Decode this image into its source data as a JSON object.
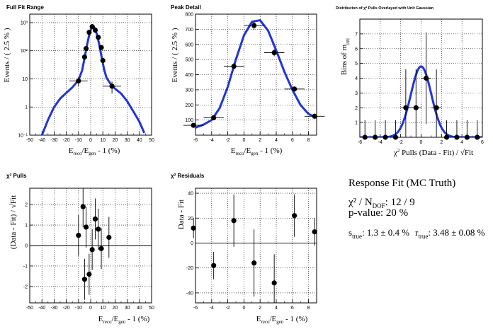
{
  "chart_data": [
    {
      "id": "full-fit-range",
      "type": "scatter",
      "title": "Full Fit Range",
      "xlabel": "E_reco/E_gen - 1 (%)",
      "ylabel": "Events / ( 2.5 % )",
      "xlim": [
        -50,
        50
      ],
      "ylim": [
        0.1,
        2000
      ],
      "yscale": "log",
      "grid": true,
      "xticks": [
        "-50",
        "-40",
        "-30",
        "-20",
        "-10",
        "0",
        "10",
        "20",
        "30",
        "40",
        "50"
      ],
      "yticks": [
        "10⁻¹",
        "1",
        "10",
        "10²",
        "10³"
      ],
      "points": [
        {
          "x": -10.0,
          "y": 8.5,
          "xerr": 7.5,
          "yerr": 3
        },
        {
          "x": -5.0,
          "y": 60,
          "xerr": 1.25,
          "yerr": 10
        },
        {
          "x": -3.75,
          "y": 120,
          "xerr": 1.25,
          "yerr": 12
        },
        {
          "x": -1.25,
          "y": 450,
          "xerr": 1.25,
          "yerr": 25
        },
        {
          "x": 1.25,
          "y": 720,
          "xerr": 1.25,
          "yerr": 30
        },
        {
          "x": 3.75,
          "y": 540,
          "xerr": 1.25,
          "yerr": 25
        },
        {
          "x": 6.25,
          "y": 300,
          "xerr": 1.25,
          "yerr": 20
        },
        {
          "x": 8.75,
          "y": 130,
          "xerr": 1.25,
          "yerr": 12
        },
        {
          "x": 10.0,
          "y": 45,
          "xerr": 1.25,
          "yerr": 8
        },
        {
          "x": 17.5,
          "y": 5.5,
          "xerr": 7.5,
          "yerr": 2.5
        }
      ],
      "curve": [
        [
          -40,
          0.1
        ],
        [
          -35,
          0.35
        ],
        [
          -30,
          1.0
        ],
        [
          -25,
          2.0
        ],
        [
          -20,
          3.2
        ],
        [
          -15,
          5.0
        ],
        [
          -10,
          9
        ],
        [
          -7,
          20
        ],
        [
          -5,
          55
        ],
        [
          -3,
          160
        ],
        [
          -1,
          400
        ],
        [
          1,
          720
        ],
        [
          2,
          760
        ],
        [
          3,
          680
        ],
        [
          5,
          400
        ],
        [
          7,
          170
        ],
        [
          9,
          60
        ],
        [
          11,
          22
        ],
        [
          13,
          11
        ],
        [
          17,
          6
        ],
        [
          20,
          4.5
        ],
        [
          25,
          3
        ],
        [
          30,
          1.6
        ],
        [
          35,
          0.7
        ],
        [
          40,
          0.3
        ],
        [
          44,
          0.12
        ]
      ]
    },
    {
      "id": "peak-detail",
      "type": "scatter",
      "title": "Peak Detail",
      "xlabel": "E_reco/E_gen - 1 (%)",
      "ylabel": "Events / ( 2.5 % )",
      "xlim": [
        -6,
        9
      ],
      "ylim": [
        0,
        800
      ],
      "grid": true,
      "xticks": [
        "-6",
        "-4",
        "-2",
        "0",
        "2",
        "4",
        "6",
        "8"
      ],
      "yticks": [
        "100",
        "200",
        "300",
        "400",
        "500",
        "600",
        "700",
        "800"
      ],
      "points": [
        {
          "x": -6.25,
          "y": 65,
          "xerr": 1.25,
          "yerr": 8
        },
        {
          "x": -3.75,
          "y": 115,
          "xerr": 1.25,
          "yerr": 11
        },
        {
          "x": -1.25,
          "y": 455,
          "xerr": 1.25,
          "yerr": 21
        },
        {
          "x": 1.25,
          "y": 725,
          "xerr": 1.25,
          "yerr": 27
        },
        {
          "x": 3.75,
          "y": 545,
          "xerr": 1.25,
          "yerr": 23
        },
        {
          "x": 6.25,
          "y": 305,
          "xerr": 1.25,
          "yerr": 17
        },
        {
          "x": 8.75,
          "y": 125,
          "xerr": 1.25,
          "yerr": 11
        }
      ],
      "curve": [
        [
          -6,
          50
        ],
        [
          -5,
          70
        ],
        [
          -4,
          100
        ],
        [
          -3,
          180
        ],
        [
          -2,
          320
        ],
        [
          -1,
          500
        ],
        [
          0,
          660
        ],
        [
          1,
          750
        ],
        [
          2,
          760
        ],
        [
          3,
          690
        ],
        [
          4,
          560
        ],
        [
          5,
          420
        ],
        [
          6,
          300
        ],
        [
          7,
          200
        ],
        [
          8,
          140
        ],
        [
          9,
          115
        ]
      ]
    },
    {
      "id": "pulls-distribution",
      "type": "scatter",
      "title": "Distribution of χ² Pulls Overlayed with Unit Gaussian",
      "xlabel": "χ² Pulls (Data - Fit) / √Fit",
      "ylabel": "Bins of m_μμγ",
      "xlim": [
        -6,
        6
      ],
      "ylim": [
        0,
        8
      ],
      "grid": true,
      "xticks": [
        "-6",
        "-4",
        "-2",
        "0",
        "2",
        "4",
        "6"
      ],
      "yticks": [
        "1",
        "2",
        "3",
        "4",
        "5",
        "6",
        "7"
      ],
      "points": [
        {
          "x": -5.5,
          "y": 0,
          "xerr": 0.5,
          "yerr": 1.15
        },
        {
          "x": -4.5,
          "y": 0,
          "xerr": 0.5,
          "yerr": 1.15
        },
        {
          "x": -3.5,
          "y": 0,
          "xerr": 0.5,
          "yerr": 1.15
        },
        {
          "x": -2.5,
          "y": 0,
          "xerr": 0.5,
          "yerr": 1.15
        },
        {
          "x": -1.5,
          "y": 2,
          "xerr": 0.5,
          "yerr": 2.6
        },
        {
          "x": -0.5,
          "y": 2,
          "xerr": 0.5,
          "yerr": 2.6
        },
        {
          "x": 0.5,
          "y": 4,
          "xerr": 0.5,
          "yerr": 3.1
        },
        {
          "x": 1.5,
          "y": 2,
          "xerr": 0.5,
          "yerr": 2.6
        },
        {
          "x": 2.5,
          "y": 0,
          "xerr": 0.5,
          "yerr": 1.15
        },
        {
          "x": 3.5,
          "y": 0,
          "xerr": 0.5,
          "yerr": 1.15
        },
        {
          "x": 4.5,
          "y": 0,
          "xerr": 0.5,
          "yerr": 1.15
        },
        {
          "x": 5.5,
          "y": 0,
          "xerr": 0.5,
          "yerr": 1.15
        }
      ],
      "curve_gaussian": {
        "norm": 4.8,
        "sigma": 1.0
      }
    },
    {
      "id": "chi2-pulls",
      "type": "scatter",
      "title": "χ² Pulls",
      "xlabel": "E_reco/E_gen - 1 (%)",
      "ylabel": "(Data - Fit) / √Fit",
      "xlim": [
        -50,
        50
      ],
      "ylim": [
        -2.8,
        2.8
      ],
      "grid": true,
      "zero_line": true,
      "xticks": [
        "-50",
        "-40",
        "-30",
        "-20",
        "-10",
        "0",
        "10",
        "20",
        "30",
        "40",
        "50"
      ],
      "yticks": [
        "-2",
        "-1",
        "0",
        "1",
        "2"
      ],
      "points": [
        {
          "x": -10.0,
          "y": 0.5,
          "yerr": 1.0
        },
        {
          "x": -6.25,
          "y": 1.9,
          "yerr": 1.0
        },
        {
          "x": -5.0,
          "y": -1.65,
          "yerr": 1.0
        },
        {
          "x": -3.75,
          "y": 0.9,
          "yerr": 1.0
        },
        {
          "x": -1.25,
          "y": -1.4,
          "yerr": 1.0
        },
        {
          "x": 1.25,
          "y": -0.2,
          "yerr": 1.0
        },
        {
          "x": 3.75,
          "y": 1.3,
          "yerr": 1.0
        },
        {
          "x": 6.25,
          "y": 0.8,
          "yerr": 1.0
        },
        {
          "x": 8.75,
          "y": -0.15,
          "yerr": 1.0
        },
        {
          "x": 15.0,
          "y": 0.4,
          "yerr": 1.0
        }
      ]
    },
    {
      "id": "chi2-residuals",
      "type": "scatter",
      "title": "χ² Residuals",
      "xlabel": "E_reco/E_gen - 1 (%)",
      "ylabel": "Data - Fit",
      "xlim": [
        -6,
        9
      ],
      "ylim": [
        -48,
        44
      ],
      "grid": true,
      "zero_line": true,
      "xticks": [
        "-6",
        "-4",
        "-2",
        "0",
        "2",
        "4",
        "6",
        "8"
      ],
      "yticks": [
        "-40",
        "-20",
        "0",
        "20",
        "40"
      ],
      "points": [
        {
          "x": -6.25,
          "y": 12,
          "yerr": 8
        },
        {
          "x": -3.75,
          "y": -18,
          "yerr": 11
        },
        {
          "x": -1.25,
          "y": 18,
          "yerr": 21
        },
        {
          "x": 1.25,
          "y": -16,
          "yerr": 27
        },
        {
          "x": 3.75,
          "y": -32,
          "yerr": 23
        },
        {
          "x": 6.25,
          "y": 22,
          "yerr": 17
        },
        {
          "x": 8.75,
          "y": 9,
          "yerr": 11
        }
      ]
    }
  ],
  "results": {
    "title": "Response Fit (MC Truth)",
    "chi2": "χ² / N",
    "chi2_sub": "DOF",
    "chi2_value": ": 12 / 9",
    "pvalue": "p-value: 20 %",
    "s_label": "s",
    "s_sub": "true",
    "s_value": ": 1.3 ± 0.4 %",
    "r_label": "r",
    "r_sub": "true",
    "r_value": ": 3.48 ± 0.08 %"
  },
  "colors": {
    "curve": "#1f35d6",
    "marker": "#000000",
    "grid": "#000000"
  }
}
